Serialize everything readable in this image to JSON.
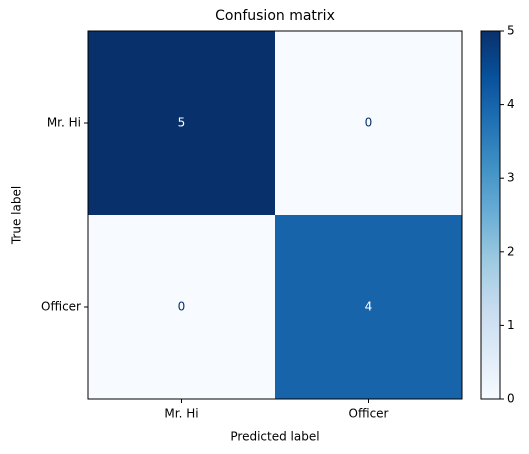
{
  "chart_data": {
    "type": "heatmap",
    "title": "Confusion matrix",
    "x_label": "Predicted label",
    "y_label": "True label",
    "x_categories": [
      "Mr. Hi",
      "Officer"
    ],
    "y_categories": [
      "Mr. Hi",
      "Officer"
    ],
    "values": [
      [
        5,
        0
      ],
      [
        0,
        4
      ]
    ],
    "zlim": [
      0,
      5
    ],
    "zticks": [
      0,
      1,
      2,
      3,
      4,
      5
    ],
    "colormap": "Blues"
  }
}
